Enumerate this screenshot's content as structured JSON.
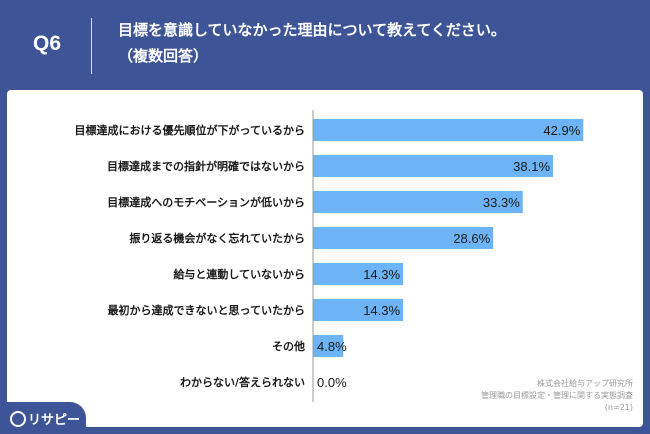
{
  "header": {
    "question_label": "Q6",
    "title": "目標を意識していなかった理由について教えてください。",
    "subtitle": "（複数回答）"
  },
  "colors": {
    "background": "#3d5497",
    "bar": "#6cb4f5",
    "panel": "#ffffff",
    "text": "#1a1a1a"
  },
  "chart_data": {
    "type": "bar",
    "orientation": "horizontal",
    "categories": [
      "目標達成における優先順位が下がっているから",
      "目標達成までの指針が明確ではないから",
      "目標達成へのモチベーションが低いから",
      "振り返る機会がなく忘れていたから",
      "給与と連動していないから",
      "最初から達成できないと思っていたから",
      "その他",
      "わからない/答えられない"
    ],
    "values": [
      42.9,
      38.1,
      33.3,
      28.6,
      14.3,
      14.3,
      4.8,
      0.0
    ],
    "value_labels": [
      "42.9%",
      "38.1%",
      "33.3%",
      "28.6%",
      "14.3%",
      "14.3%",
      "4.8%",
      "0.0%"
    ],
    "xlim": [
      0,
      50
    ],
    "grid": false
  },
  "source": {
    "line1": "株式会社給与アップ研究所",
    "line2": "管理職の目標設定・管理に関する実態調査",
    "line3": "(n=21)"
  },
  "logo": {
    "text": "リサピー"
  }
}
